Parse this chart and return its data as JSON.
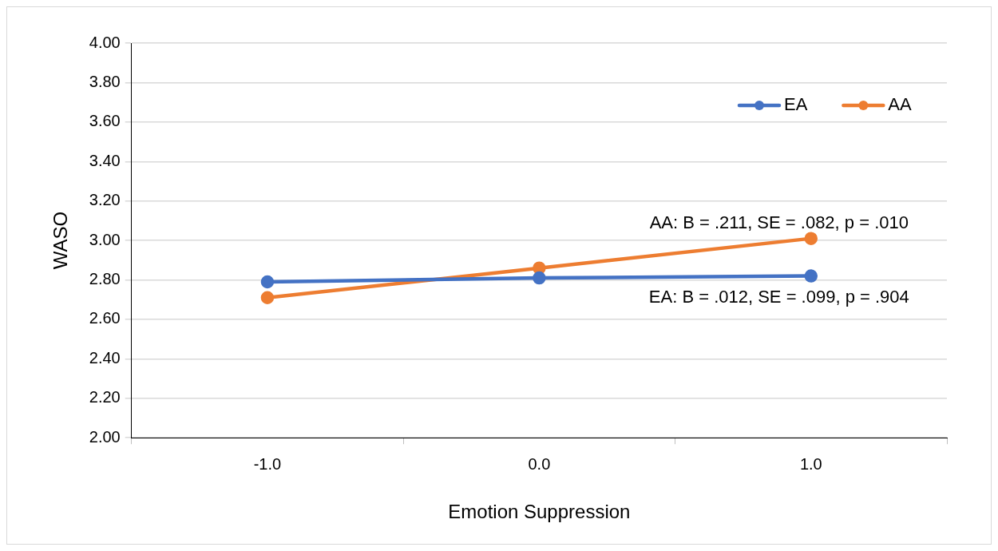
{
  "chart_data": {
    "type": "line",
    "xlabel": "Emotion Suppression",
    "ylabel": "WASO",
    "categories": [
      "-1.0",
      "0.0",
      "1.0"
    ],
    "series": [
      {
        "name": "EA",
        "color": "#4472c4",
        "values": [
          2.79,
          2.81,
          2.82
        ]
      },
      {
        "name": "AA",
        "color": "#ed7d31",
        "values": [
          2.71,
          2.86,
          3.01
        ]
      }
    ],
    "ylim": [
      2,
      4
    ],
    "yticks": [
      {
        "value": 2,
        "label": "2.00"
      },
      {
        "value": 2.2,
        "label": "2.20"
      },
      {
        "value": 2.4,
        "label": "2.40"
      },
      {
        "value": 2.6,
        "label": "2.60"
      },
      {
        "value": 2.8,
        "label": "2.80"
      },
      {
        "value": 3,
        "label": "3.00"
      },
      {
        "value": 3.2,
        "label": "3.20"
      },
      {
        "value": 3.4,
        "label": "3.40"
      },
      {
        "value": 3.6,
        "label": "3.60"
      },
      {
        "value": 3.8,
        "label": "3.80"
      },
      {
        "value": 4,
        "label": "4.00"
      }
    ],
    "grid": "y",
    "legend": "top right",
    "marker": "circle",
    "line_style": "solid",
    "annotations": [
      {
        "text": "AA: B = .211, SE = .082, p = .010",
        "x": "1.0",
        "y": 3.01
      },
      {
        "text": "EA: B = .012, SE = .099, p = .904",
        "x": "1.0",
        "y": 2.82
      }
    ]
  }
}
